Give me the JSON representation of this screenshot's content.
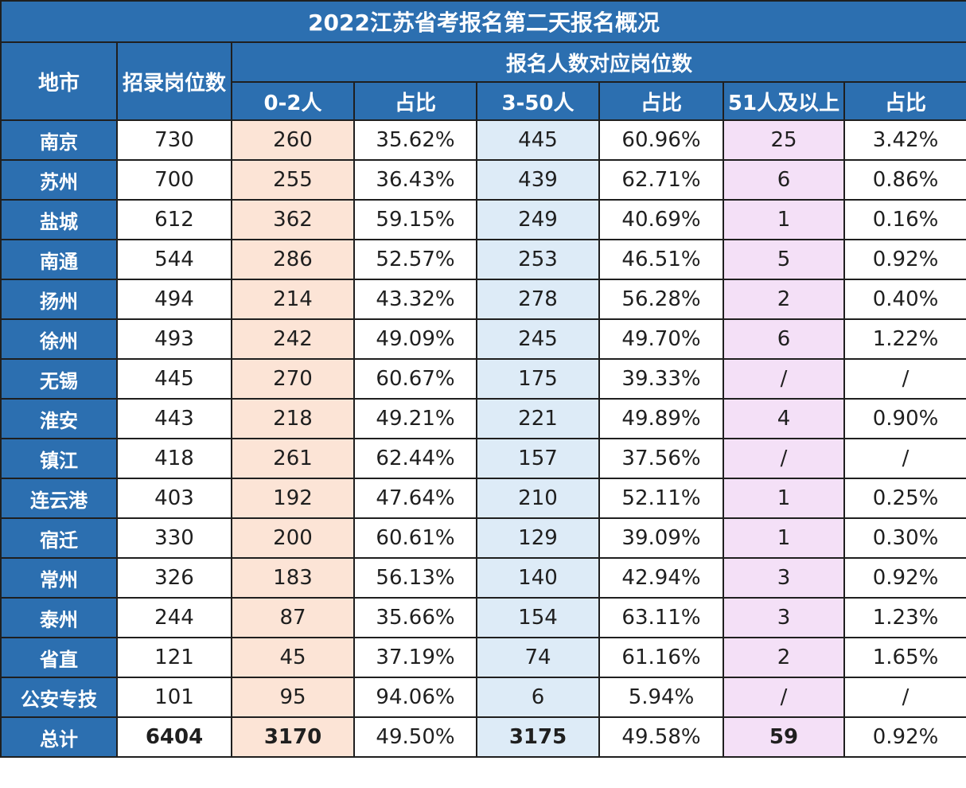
{
  "title": "2022江苏省考报名第二天报名概况",
  "headers": {
    "city": "地市",
    "positions": "招录岗位数",
    "group": "报名人数对应岗位数",
    "sub": [
      "0-2人",
      "占比",
      "3-50人",
      "占比",
      "51人及以上",
      "占比"
    ]
  },
  "rows": [
    {
      "city": "南京",
      "positions": "730",
      "c02": "260",
      "p02": "35.62%",
      "c350": "445",
      "p350": "60.96%",
      "c51": "25",
      "p51": "3.42%"
    },
    {
      "city": "苏州",
      "positions": "700",
      "c02": "255",
      "p02": "36.43%",
      "c350": "439",
      "p350": "62.71%",
      "c51": "6",
      "p51": "0.86%"
    },
    {
      "city": "盐城",
      "positions": "612",
      "c02": "362",
      "p02": "59.15%",
      "c350": "249",
      "p350": "40.69%",
      "c51": "1",
      "p51": "0.16%"
    },
    {
      "city": "南通",
      "positions": "544",
      "c02": "286",
      "p02": "52.57%",
      "c350": "253",
      "p350": "46.51%",
      "c51": "5",
      "p51": "0.92%"
    },
    {
      "city": "扬州",
      "positions": "494",
      "c02": "214",
      "p02": "43.32%",
      "c350": "278",
      "p350": "56.28%",
      "c51": "2",
      "p51": "0.40%"
    },
    {
      "city": "徐州",
      "positions": "493",
      "c02": "242",
      "p02": "49.09%",
      "c350": "245",
      "p350": "49.70%",
      "c51": "6",
      "p51": "1.22%"
    },
    {
      "city": "无锡",
      "positions": "445",
      "c02": "270",
      "p02": "60.67%",
      "c350": "175",
      "p350": "39.33%",
      "c51": "/",
      "p51": "/"
    },
    {
      "city": "淮安",
      "positions": "443",
      "c02": "218",
      "p02": "49.21%",
      "c350": "221",
      "p350": "49.89%",
      "c51": "4",
      "p51": "0.90%"
    },
    {
      "city": "镇江",
      "positions": "418",
      "c02": "261",
      "p02": "62.44%",
      "c350": "157",
      "p350": "37.56%",
      "c51": "/",
      "p51": "/"
    },
    {
      "city": "连云港",
      "positions": "403",
      "c02": "192",
      "p02": "47.64%",
      "c350": "210",
      "p350": "52.11%",
      "c51": "1",
      "p51": "0.25%"
    },
    {
      "city": "宿迁",
      "positions": "330",
      "c02": "200",
      "p02": "60.61%",
      "c350": "129",
      "p350": "39.09%",
      "c51": "1",
      "p51": "0.30%"
    },
    {
      "city": "常州",
      "positions": "326",
      "c02": "183",
      "p02": "56.13%",
      "c350": "140",
      "p350": "42.94%",
      "c51": "3",
      "p51": "0.92%"
    },
    {
      "city": "泰州",
      "positions": "244",
      "c02": "87",
      "p02": "35.66%",
      "c350": "154",
      "p350": "63.11%",
      "c51": "3",
      "p51": "1.23%"
    },
    {
      "city": "省直",
      "positions": "121",
      "c02": "45",
      "p02": "37.19%",
      "c350": "74",
      "p350": "61.16%",
      "c51": "2",
      "p51": "1.65%"
    },
    {
      "city": "公安专技",
      "positions": "101",
      "c02": "95",
      "p02": "94.06%",
      "c350": "6",
      "p350": "5.94%",
      "c51": "/",
      "p51": "/"
    }
  ],
  "total": {
    "city": "总计",
    "positions": "6404",
    "c02": "3170",
    "p02": "49.50%",
    "c350": "3175",
    "p350": "49.58%",
    "c51": "59",
    "p51": "0.92%"
  },
  "colors": {
    "header_blue": "#2c6fb0",
    "peach": "#fce4d6",
    "light_blue": "#ddebf7",
    "pink": "#f4e0f7"
  }
}
